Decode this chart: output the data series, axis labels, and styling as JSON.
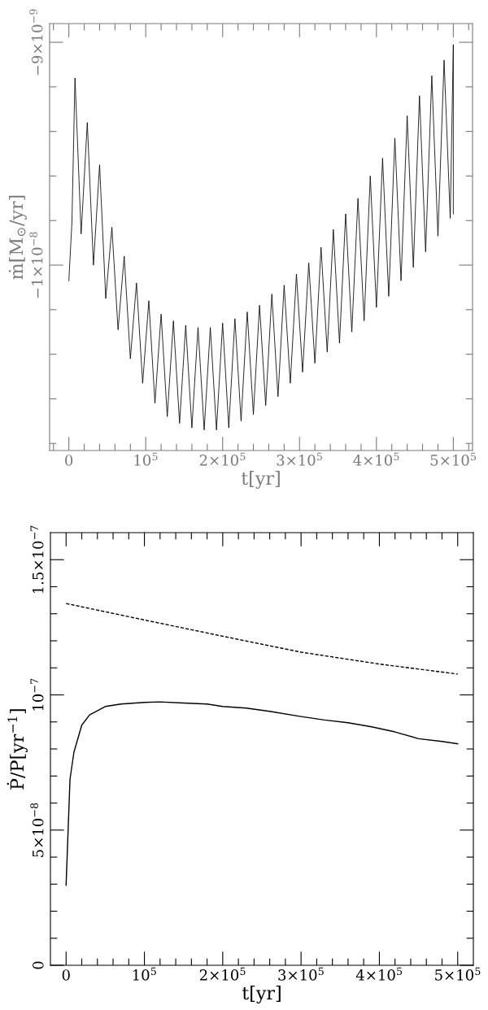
{
  "chart_data": [
    {
      "type": "line",
      "xlabel": "t[yr]",
      "ylabel": "ṁ[M$_{⊙}$/yr]",
      "xlim": [
        -25000,
        525000
      ],
      "ylim": [
        -1.0832e-08,
        -8.916e-09
      ],
      "xticks": [
        {
          "value": -20000,
          "label": null
        },
        {
          "value": 0,
          "label": "0"
        },
        {
          "value": 20000,
          "label": null
        },
        {
          "value": 40000,
          "label": null
        },
        {
          "value": 60000,
          "label": null
        },
        {
          "value": 80000,
          "label": null
        },
        {
          "value": 100000,
          "label": "10$^{5}$"
        },
        {
          "value": 120000,
          "label": null
        },
        {
          "value": 140000,
          "label": null
        },
        {
          "value": 160000,
          "label": null
        },
        {
          "value": 180000,
          "label": null
        },
        {
          "value": 200000,
          "label": "2×10$^{5}$"
        },
        {
          "value": 220000,
          "label": null
        },
        {
          "value": 240000,
          "label": null
        },
        {
          "value": 260000,
          "label": null
        },
        {
          "value": 280000,
          "label": null
        },
        {
          "value": 300000,
          "label": "3×10$^{5}$"
        },
        {
          "value": 320000,
          "label": null
        },
        {
          "value": 340000,
          "label": null
        },
        {
          "value": 360000,
          "label": null
        },
        {
          "value": 380000,
          "label": null
        },
        {
          "value": 400000,
          "label": "4×10$^{5}$"
        },
        {
          "value": 420000,
          "label": null
        },
        {
          "value": 440000,
          "label": null
        },
        {
          "value": 460000,
          "label": null
        },
        {
          "value": 480000,
          "label": null
        },
        {
          "value": 500000,
          "label": "5×10$^{5}$"
        },
        {
          "value": 520000,
          "label": null
        }
      ],
      "yticks": [
        {
          "value": -1.08e-08,
          "label": null
        },
        {
          "value": -1.06e-08,
          "label": null
        },
        {
          "value": -1.04e-08,
          "label": null
        },
        {
          "value": -1.02e-08,
          "label": null
        },
        {
          "value": -1e-08,
          "label": "−1×10$^{−8}$"
        },
        {
          "value": -9.8e-09,
          "label": null
        },
        {
          "value": -9.6e-09,
          "label": null
        },
        {
          "value": -9.4e-09,
          "label": null
        },
        {
          "value": -9.2e-09,
          "label": null
        },
        {
          "value": -9e-09,
          "label": "−9×10$^{−9}$"
        }
      ],
      "series": [
        {
          "color": "#000000",
          "line_style": "solid",
          "x": [
            0,
            4000,
            8000,
            16000,
            24000,
            32000,
            40000,
            48000,
            56000,
            64000,
            72000,
            80000,
            88000,
            96000,
            104000,
            112000,
            120000,
            128000,
            136000,
            144000,
            152000,
            160000,
            168000,
            176000,
            184000,
            192000,
            200000,
            208000,
            216000,
            224000,
            232000,
            240000,
            248000,
            256000,
            264000,
            272000,
            280000,
            288000,
            296000,
            304000,
            312000,
            320000,
            328000,
            336000,
            344000,
            352000,
            360000,
            368000,
            376000,
            384000,
            392000,
            400000,
            408000,
            416000,
            424000,
            432000,
            440000,
            448000,
            456000,
            464000,
            472000,
            480000,
            488000,
            496000,
            500000,
            500000
          ],
          "values": [
            -1.007e-08,
            -9.81e-09,
            -9.16e-09,
            -9.86e-09,
            -9.36e-09,
            -1e-08,
            -9.55e-09,
            -1.015e-08,
            -9.83e-09,
            -1.029e-08,
            -9.96e-09,
            -1.042e-08,
            -1.008e-08,
            -1.053e-08,
            -1.016e-08,
            -1.062e-08,
            -1.022e-08,
            -1.068e-08,
            -1.025e-08,
            -1.071e-08,
            -1.027e-08,
            -1.073e-08,
            -1.028e-08,
            -1.074e-08,
            -1.028e-08,
            -1.074e-08,
            -1.026e-08,
            -1.073e-08,
            -1.024e-08,
            -1.07e-08,
            -1.021e-08,
            -1.067e-08,
            -1.018e-08,
            -1.063e-08,
            -1.013e-08,
            -1.059e-08,
            -1.009e-08,
            -1.053e-08,
            -1.004e-08,
            -1.048e-08,
            -9.99e-09,
            -1.044e-08,
            -9.92e-09,
            -1.039e-08,
            -9.84e-09,
            -1.035e-08,
            -9.77e-09,
            -1.03e-08,
            -9.7e-09,
            -1.025e-08,
            -9.6e-09,
            -1.019e-08,
            -9.52e-09,
            -1.014e-08,
            -9.43e-09,
            -1.007e-08,
            -9.33e-09,
            -1.001e-08,
            -9.24e-09,
            -9.94e-09,
            -9.15e-09,
            -9.87e-09,
            -9.08e-09,
            -9.79e-09,
            -9.01e-09,
            -9.77e-09
          ]
        }
      ]
    },
    {
      "type": "line",
      "xlabel": "t[yr]",
      "ylabel": "Ṗ/P[yr$^{−1}$]",
      "xlim": [
        -20000,
        520000
      ],
      "ylim": [
        0,
        1.6e-07
      ],
      "xticks": [
        {
          "value": 0,
          "label": "0"
        },
        {
          "value": 20000,
          "label": null
        },
        {
          "value": 40000,
          "label": null
        },
        {
          "value": 60000,
          "label": null
        },
        {
          "value": 80000,
          "label": null
        },
        {
          "value": 100000,
          "label": "10$^{5}$"
        },
        {
          "value": 120000,
          "label": null
        },
        {
          "value": 140000,
          "label": null
        },
        {
          "value": 160000,
          "label": null
        },
        {
          "value": 180000,
          "label": null
        },
        {
          "value": 200000,
          "label": "2×10$^{5}$"
        },
        {
          "value": 220000,
          "label": null
        },
        {
          "value": 240000,
          "label": null
        },
        {
          "value": 260000,
          "label": null
        },
        {
          "value": 280000,
          "label": null
        },
        {
          "value": 300000,
          "label": "3×10$^{5}$"
        },
        {
          "value": 320000,
          "label": null
        },
        {
          "value": 340000,
          "label": null
        },
        {
          "value": 360000,
          "label": null
        },
        {
          "value": 380000,
          "label": null
        },
        {
          "value": 400000,
          "label": "4×10$^{5}$"
        },
        {
          "value": 420000,
          "label": null
        },
        {
          "value": 440000,
          "label": null
        },
        {
          "value": 460000,
          "label": null
        },
        {
          "value": 480000,
          "label": null
        },
        {
          "value": 500000,
          "label": "5×10$^{5}$"
        }
      ],
      "yticks": [
        {
          "value": 0,
          "label": "0"
        },
        {
          "value": 1e-08,
          "label": null
        },
        {
          "value": 2e-08,
          "label": null
        },
        {
          "value": 3e-08,
          "label": null
        },
        {
          "value": 4e-08,
          "label": null
        },
        {
          "value": 5e-08,
          "label": "5×10$^{−8}$"
        },
        {
          "value": 6e-08,
          "label": null
        },
        {
          "value": 7e-08,
          "label": null
        },
        {
          "value": 8e-08,
          "label": null
        },
        {
          "value": 9e-08,
          "label": null
        },
        {
          "value": 1e-07,
          "label": "10$^{−7}$"
        },
        {
          "value": 1.1e-07,
          "label": null
        },
        {
          "value": 1.2e-07,
          "label": null
        },
        {
          "value": 1.3e-07,
          "label": null
        },
        {
          "value": 1.4e-07,
          "label": null
        },
        {
          "value": 1.5e-07,
          "label": "1.5×10$^{−7}$"
        }
      ],
      "series": [
        {
          "color": "#000000",
          "line_style": "dashed",
          "x": [
            0,
            100000,
            200000,
            300000,
            400000,
            500000
          ],
          "values": [
            1.338e-07,
            1.277e-07,
            1.217e-07,
            1.158e-07,
            1.114e-07,
            1.077e-07
          ]
        },
        {
          "color": "#000000",
          "line_style": "solid",
          "x": [
            0,
            5000,
            10000,
            20000,
            30000,
            50000,
            70000,
            100000,
            120000,
            150000,
            180000,
            200000,
            230000,
            260000,
            300000,
            330000,
            360000,
            390000,
            420000,
            450000,
            480000,
            500000
          ],
          "values": [
            2.96e-08,
            6.88e-08,
            7.88e-08,
            8.88e-08,
            9.26e-08,
            9.57e-08,
            9.66e-08,
            9.72e-08,
            9.74e-08,
            9.7e-08,
            9.66e-08,
            9.57e-08,
            9.51e-08,
            9.39e-08,
            9.2e-08,
            9.07e-08,
            8.97e-08,
            8.82e-08,
            8.63e-08,
            8.38e-08,
            8.28e-08,
            8.19e-08
          ]
        }
      ]
    }
  ]
}
